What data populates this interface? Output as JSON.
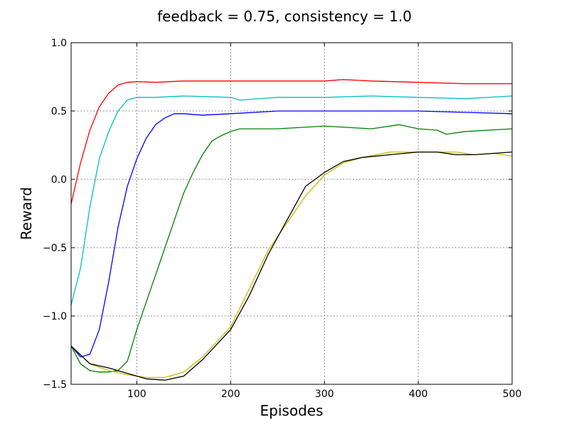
{
  "chart_data": {
    "type": "line",
    "title": "feedback = 0.75, consistency = 1.0",
    "xlabel": "Episodes",
    "ylabel": "Reward",
    "xlim": [
      30,
      500
    ],
    "ylim": [
      -1.5,
      1.0
    ],
    "xticks": [
      100,
      200,
      300,
      400,
      500
    ],
    "yticks": [
      -1.5,
      -1.0,
      -0.5,
      0.0,
      0.5,
      1.0
    ],
    "xtick_labels": [
      "100",
      "200",
      "300",
      "400",
      "500"
    ],
    "ytick_labels": [
      "−1.5",
      "−1.0",
      "−0.5",
      "0.0",
      "0.5",
      "1.0"
    ],
    "grid": true,
    "series": [
      {
        "color": "#ff0000",
        "x": [
          30,
          40,
          50,
          60,
          70,
          80,
          90,
          100,
          120,
          150,
          200,
          250,
          300,
          320,
          350,
          400,
          450,
          500
        ],
        "y": [
          -0.18,
          0.12,
          0.36,
          0.53,
          0.63,
          0.69,
          0.71,
          0.715,
          0.71,
          0.72,
          0.72,
          0.72,
          0.72,
          0.73,
          0.72,
          0.71,
          0.7,
          0.7
        ]
      },
      {
        "color": "#00bfbf",
        "x": [
          30,
          40,
          50,
          60,
          70,
          80,
          90,
          100,
          120,
          150,
          200,
          210,
          250,
          300,
          350,
          400,
          450,
          500
        ],
        "y": [
          -0.92,
          -0.65,
          -0.2,
          0.15,
          0.35,
          0.5,
          0.58,
          0.6,
          0.6,
          0.61,
          0.6,
          0.58,
          0.6,
          0.6,
          0.61,
          0.6,
          0.59,
          0.61
        ]
      },
      {
        "color": "#0000ff",
        "x": [
          30,
          40,
          50,
          60,
          70,
          80,
          90,
          100,
          110,
          120,
          130,
          140,
          150,
          170,
          200,
          250,
          300,
          350,
          400,
          450,
          500
        ],
        "y": [
          -1.22,
          -1.3,
          -1.28,
          -1.1,
          -0.75,
          -0.35,
          -0.05,
          0.15,
          0.3,
          0.4,
          0.45,
          0.48,
          0.48,
          0.47,
          0.48,
          0.5,
          0.5,
          0.5,
          0.5,
          0.49,
          0.48
        ]
      },
      {
        "color": "#008000",
        "x": [
          30,
          40,
          50,
          60,
          70,
          80,
          90,
          100,
          110,
          120,
          130,
          140,
          150,
          160,
          170,
          180,
          190,
          200,
          210,
          230,
          250,
          300,
          350,
          380,
          400,
          420,
          430,
          450,
          500
        ],
        "y": [
          -1.22,
          -1.35,
          -1.4,
          -1.41,
          -1.41,
          -1.4,
          -1.33,
          -1.1,
          -0.9,
          -0.7,
          -0.5,
          -0.3,
          -0.1,
          0.05,
          0.18,
          0.28,
          0.32,
          0.35,
          0.37,
          0.37,
          0.37,
          0.39,
          0.37,
          0.4,
          0.37,
          0.36,
          0.33,
          0.35,
          0.37
        ]
      },
      {
        "color": "#bfbf00",
        "x": [
          30,
          50,
          70,
          90,
          110,
          130,
          150,
          170,
          200,
          220,
          240,
          260,
          280,
          300,
          320,
          340,
          370,
          400,
          420,
          440,
          460,
          480,
          500
        ],
        "y": [
          -1.22,
          -1.35,
          -1.4,
          -1.43,
          -1.45,
          -1.45,
          -1.41,
          -1.3,
          -1.08,
          -0.8,
          -0.52,
          -0.32,
          -0.12,
          0.03,
          0.12,
          0.16,
          0.2,
          0.2,
          0.2,
          0.2,
          0.18,
          0.19,
          0.17
        ]
      },
      {
        "color": "#000000",
        "x": [
          30,
          50,
          70,
          90,
          110,
          130,
          150,
          170,
          200,
          220,
          240,
          260,
          280,
          300,
          320,
          340,
          370,
          400,
          420,
          440,
          460,
          480,
          500
        ],
        "y": [
          -1.22,
          -1.35,
          -1.38,
          -1.42,
          -1.46,
          -1.47,
          -1.44,
          -1.32,
          -1.1,
          -0.85,
          -0.55,
          -0.3,
          -0.05,
          0.05,
          0.13,
          0.16,
          0.18,
          0.2,
          0.2,
          0.18,
          0.18,
          0.19,
          0.2
        ]
      }
    ]
  }
}
